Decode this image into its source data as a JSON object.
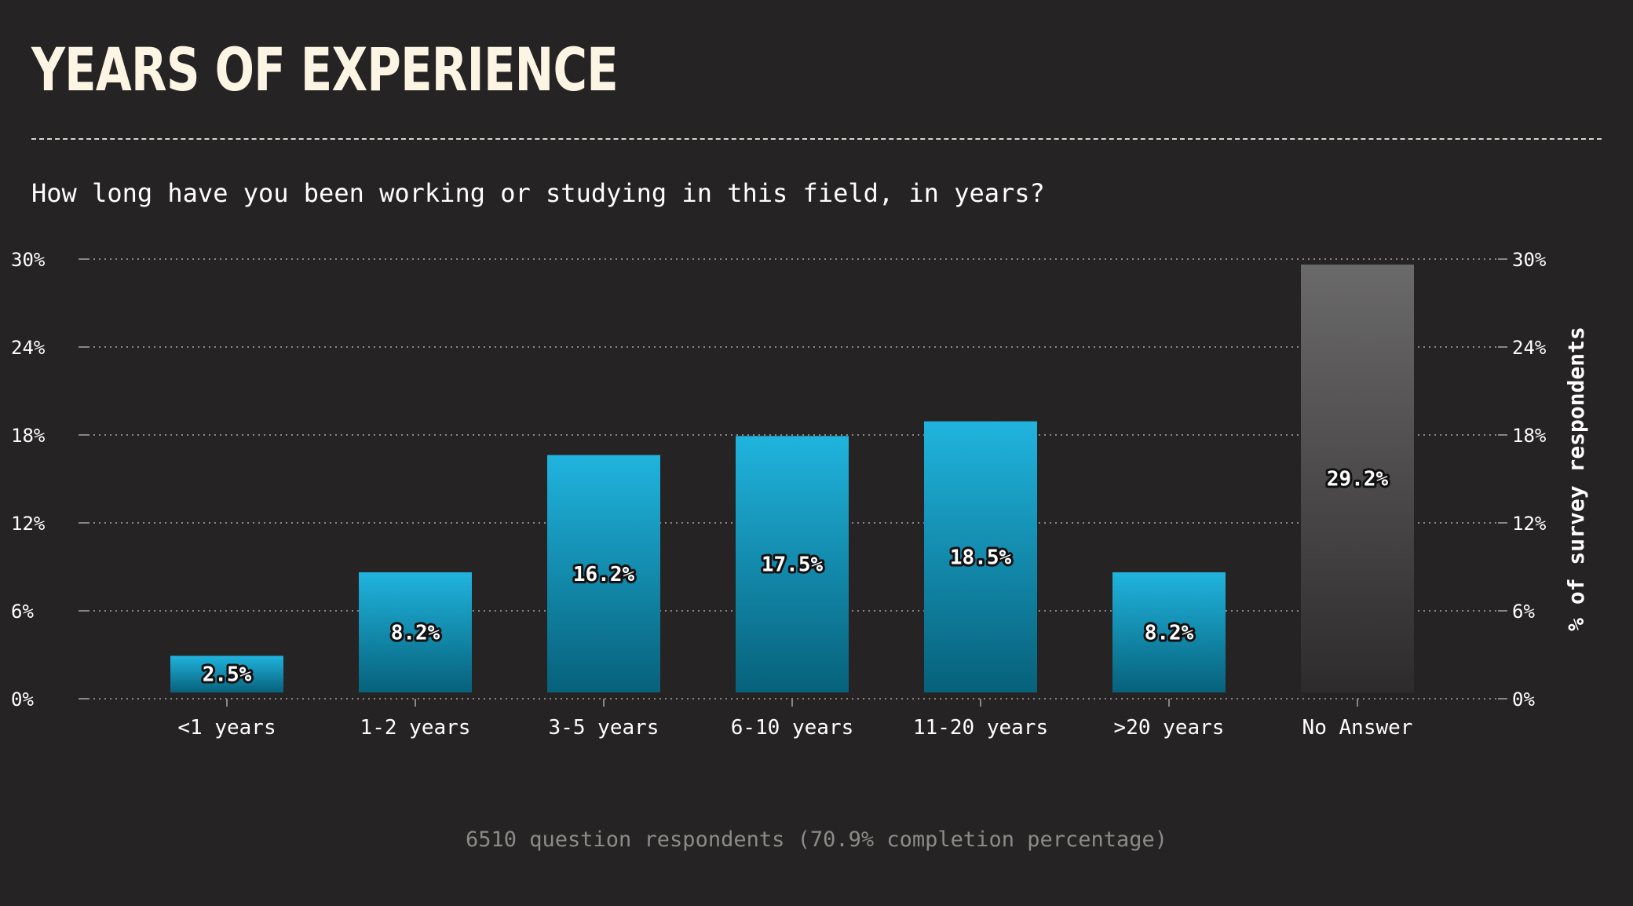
{
  "header": {
    "title": "YEARS OF EXPERIENCE",
    "subtitle": "How long have you been working or studying in this field, in years?"
  },
  "footer": {
    "note": "6510 question respondents (70.9% completion percentage)"
  },
  "colors": {
    "background": "#262324",
    "bar_top": "#20b4de",
    "bar_bottom": "#07617b",
    "na_top": "#6b6a6a",
    "na_bottom": "#2e2b2c",
    "grid": "#8a8686",
    "title": "#fdf5e4"
  },
  "chart_data": {
    "type": "bar",
    "categories": [
      "<1 years",
      "1-2 years",
      "3-5 years",
      "6-10 years",
      "11-20 years",
      ">20 years",
      "No Answer"
    ],
    "values": [
      2.5,
      8.2,
      16.2,
      17.5,
      18.5,
      8.2,
      29.2
    ],
    "data_labels": [
      "2.5%",
      "8.2%",
      "16.2%",
      "17.5%",
      "18.5%",
      "8.2%",
      "29.2%"
    ],
    "highlight": [
      "normal",
      "normal",
      "normal",
      "normal",
      "normal",
      "normal",
      "no-answer"
    ],
    "ylim": [
      0,
      30
    ],
    "yticks": [
      0,
      6,
      12,
      18,
      24,
      30
    ],
    "ytick_labels": [
      "0%",
      "6%",
      "12%",
      "18%",
      "24%",
      "30%"
    ],
    "ylabel": "% of survey respondents",
    "xlabel": "",
    "grid": true,
    "axes": "left-and-right"
  }
}
